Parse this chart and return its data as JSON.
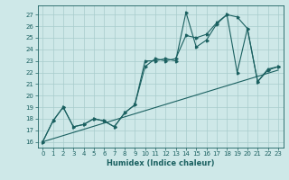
{
  "title": "",
  "xlabel": "Humidex (Indice chaleur)",
  "xlim": [
    -0.5,
    23.5
  ],
  "ylim": [
    15.5,
    27.8
  ],
  "yticks": [
    16,
    17,
    18,
    19,
    20,
    21,
    22,
    23,
    24,
    25,
    26,
    27
  ],
  "xticks": [
    0,
    1,
    2,
    3,
    4,
    5,
    6,
    7,
    8,
    9,
    10,
    11,
    12,
    13,
    14,
    15,
    16,
    17,
    18,
    19,
    20,
    21,
    22,
    23
  ],
  "bg_color": "#cee8e8",
  "grid_color": "#a8cccc",
  "line_color": "#1a6060",
  "line1_x": [
    0,
    1,
    2,
    3,
    4,
    5,
    6,
    7,
    8,
    9,
    10,
    11,
    12,
    13,
    14,
    15,
    16,
    17,
    18,
    19,
    20,
    21,
    22,
    23
  ],
  "line1_y": [
    16.0,
    17.8,
    19.0,
    17.3,
    17.5,
    18.0,
    17.8,
    17.3,
    18.5,
    19.2,
    23.0,
    23.0,
    23.2,
    23.0,
    27.2,
    24.2,
    24.8,
    26.2,
    27.0,
    26.8,
    25.8,
    21.2,
    22.3,
    22.5
  ],
  "line2_x": [
    0,
    1,
    2,
    3,
    4,
    5,
    6,
    7,
    8,
    9,
    10,
    11,
    12,
    13,
    14,
    15,
    16,
    17,
    18,
    19,
    20,
    21,
    22,
    23
  ],
  "line2_y": [
    16.0,
    17.8,
    19.0,
    17.3,
    17.5,
    18.0,
    17.8,
    17.3,
    18.5,
    19.2,
    22.5,
    23.2,
    23.0,
    23.2,
    25.2,
    25.0,
    25.3,
    26.3,
    27.0,
    22.0,
    25.8,
    21.2,
    22.2,
    22.5
  ],
  "line3_x": [
    0,
    23
  ],
  "line3_y": [
    16.0,
    22.2
  ],
  "xlabel_fontsize": 6.0,
  "tick_fontsize": 5.0
}
